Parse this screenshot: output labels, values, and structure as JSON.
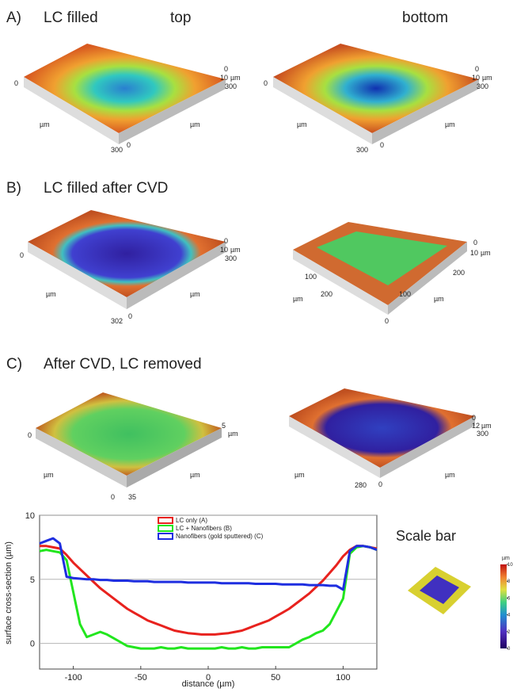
{
  "panels": [
    {
      "letter": "A)",
      "title": "LC filled",
      "column_titles": [
        "top",
        "bottom"
      ],
      "images": [
        {
          "labels": [
            "0",
            "0",
            "10",
            "µm",
            "300",
            "µm",
            "µm",
            "300",
            "0"
          ]
        },
        {
          "labels": [
            "0",
            "0",
            "10",
            "µm",
            "300",
            "µm",
            "µm",
            "300",
            "0"
          ]
        }
      ]
    },
    {
      "letter": "B)",
      "title": "LC filled after CVD",
      "images": [
        {
          "labels": [
            "0",
            "0",
            "10",
            "µm",
            "300",
            "µm",
            "µm",
            "302",
            "0"
          ]
        },
        {
          "labels": [
            "0",
            "10",
            "µm",
            "100",
            "200",
            "µm",
            "200",
            "100",
            "µm",
            "0"
          ]
        }
      ]
    },
    {
      "letter": "C)",
      "title": "After CVD, LC removed",
      "images": [
        {
          "labels": [
            "0",
            "5",
            "µm",
            "µm",
            "µm",
            "0",
            "35"
          ]
        },
        {
          "labels": [
            "0",
            "12",
            "µm",
            "300",
            "µm",
            "µm",
            "280",
            "0"
          ]
        }
      ]
    }
  ],
  "chart_data": {
    "type": "line",
    "xlabel": "distance (µm)",
    "ylabel": "surface cross-section (µm)",
    "xlim": [
      -125,
      125
    ],
    "ylim": [
      -2,
      10
    ],
    "xticks": [
      -100,
      -50,
      0,
      50,
      100
    ],
    "yticks": [
      0,
      5,
      10
    ],
    "grid": true,
    "x": [
      -125,
      -120,
      -115,
      -110,
      -105,
      -100,
      -95,
      -90,
      -85,
      -80,
      -75,
      -70,
      -65,
      -60,
      -55,
      -50,
      -45,
      -40,
      -35,
      -30,
      -25,
      -20,
      -15,
      -10,
      -5,
      0,
      5,
      10,
      15,
      20,
      25,
      30,
      35,
      40,
      45,
      50,
      55,
      60,
      65,
      70,
      75,
      80,
      85,
      90,
      95,
      100,
      105,
      110,
      115,
      120,
      125
    ],
    "series": [
      {
        "name": "LC only (A)",
        "color": "#e8221e",
        "values": [
          7.6,
          7.6,
          7.5,
          7.4,
          6.9,
          6.3,
          5.8,
          5.3,
          4.8,
          4.3,
          3.9,
          3.5,
          3.1,
          2.7,
          2.4,
          2.1,
          1.8,
          1.6,
          1.4,
          1.2,
          1.0,
          0.9,
          0.8,
          0.75,
          0.7,
          0.7,
          0.7,
          0.75,
          0.8,
          0.9,
          1.0,
          1.2,
          1.4,
          1.6,
          1.8,
          2.1,
          2.4,
          2.7,
          3.1,
          3.5,
          3.9,
          4.4,
          4.9,
          5.5,
          6.1,
          6.8,
          7.3,
          7.6,
          7.6,
          7.5,
          7.4
        ]
      },
      {
        "name": "LC + Nanofibers (B)",
        "color": "#22e61e",
        "values": [
          7.2,
          7.3,
          7.2,
          7.1,
          6.5,
          4.0,
          1.5,
          0.5,
          0.7,
          0.9,
          0.7,
          0.4,
          0.1,
          -0.2,
          -0.3,
          -0.4,
          -0.4,
          -0.4,
          -0.3,
          -0.4,
          -0.4,
          -0.3,
          -0.4,
          -0.4,
          -0.4,
          -0.4,
          -0.4,
          -0.3,
          -0.4,
          -0.4,
          -0.3,
          -0.4,
          -0.4,
          -0.3,
          -0.3,
          -0.3,
          -0.3,
          -0.3,
          0.0,
          0.3,
          0.5,
          0.8,
          1.0,
          1.5,
          2.5,
          3.5,
          7.0,
          7.5,
          7.6,
          7.5,
          7.3
        ]
      },
      {
        "name": "Nanofibers (gold sputtered) (C)",
        "color": "#1e2ee0",
        "values": [
          7.8,
          8.0,
          8.2,
          7.8,
          5.2,
          5.1,
          5.05,
          5.0,
          5.0,
          4.95,
          4.95,
          4.9,
          4.9,
          4.9,
          4.85,
          4.85,
          4.85,
          4.8,
          4.8,
          4.8,
          4.8,
          4.8,
          4.75,
          4.75,
          4.75,
          4.75,
          4.75,
          4.7,
          4.7,
          4.7,
          4.7,
          4.7,
          4.65,
          4.65,
          4.65,
          4.65,
          4.6,
          4.6,
          4.6,
          4.6,
          4.55,
          4.55,
          4.55,
          4.5,
          4.5,
          4.2,
          7.2,
          7.6,
          7.6,
          7.5,
          7.3
        ]
      }
    ]
  },
  "scale_bar": {
    "title": "Scale bar",
    "unit": "µm",
    "ticks": [
      0,
      2,
      4,
      6,
      8,
      10
    ]
  }
}
